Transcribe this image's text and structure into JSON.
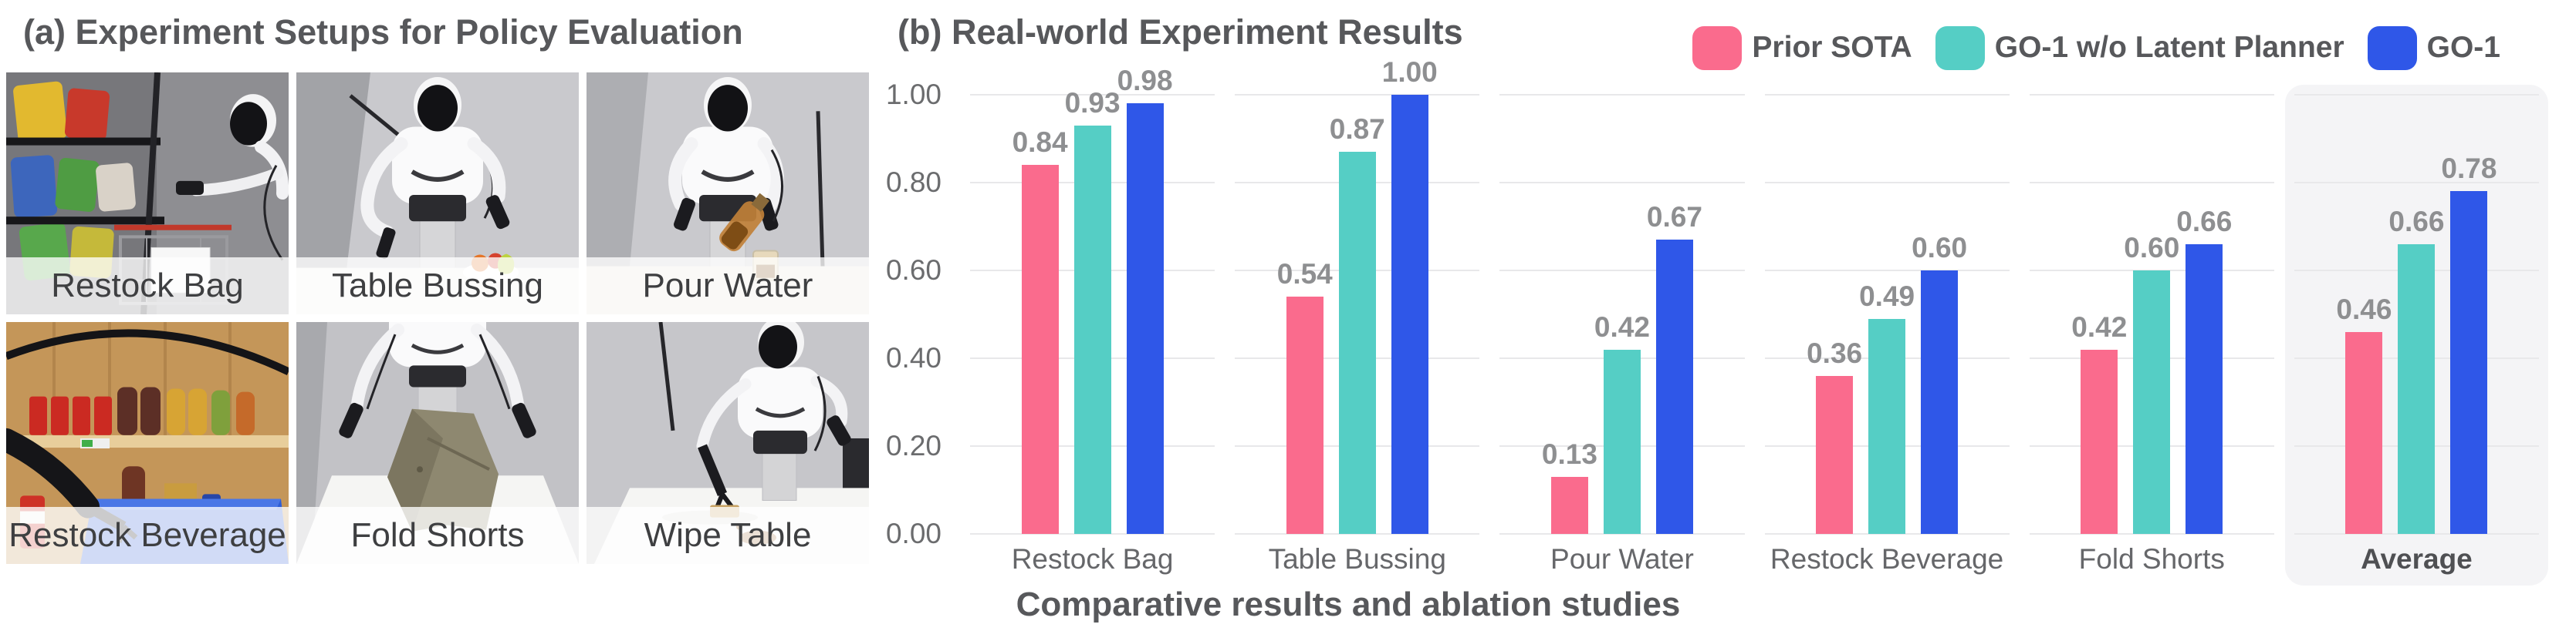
{
  "panel_a": {
    "title": "(a) Experiment Setups for Policy Evaluation",
    "setups": [
      {
        "label": "Restock Bag",
        "scene": "restock-bag"
      },
      {
        "label": "Table Bussing",
        "scene": "table-bussing"
      },
      {
        "label": "Pour Water",
        "scene": "pour-water"
      },
      {
        "label": "Restock Beverage",
        "scene": "restock-beverage"
      },
      {
        "label": "Fold Shorts",
        "scene": "fold-shorts"
      },
      {
        "label": "Wipe Table",
        "scene": "wipe-table"
      }
    ]
  },
  "panel_b": {
    "caption": "Comparative results and ablation studies"
  },
  "chart_data": {
    "type": "bar",
    "title": "(b) Real-world Experiment Results",
    "categories": [
      "Restock Bag",
      "Table Bussing",
      "Pour Water",
      "Restock Beverage",
      "Fold Shorts",
      "Average"
    ],
    "series": [
      {
        "name": "Prior SOTA",
        "color": "#FA6B8D",
        "values": [
          0.84,
          0.54,
          0.13,
          0.36,
          0.42,
          0.46
        ]
      },
      {
        "name": "GO-1 w/o Latent Planner",
        "color": "#55CEC5",
        "values": [
          0.93,
          0.87,
          0.42,
          0.49,
          0.6,
          0.66
        ]
      },
      {
        "name": "GO-1",
        "color": "#2F57E8",
        "values": [
          0.98,
          1.0,
          0.67,
          0.6,
          0.66,
          0.78
        ]
      }
    ],
    "ylim": [
      0,
      1
    ],
    "yticks": [
      0.0,
      0.2,
      0.4,
      0.6,
      0.8,
      1.0
    ],
    "grid": "horizontal",
    "legend_position": "top-right",
    "highlight_category": "Average",
    "value_labels": true,
    "colors": {
      "grid_line": "#E8E8EA",
      "highlight_bg": "#F4F4F6",
      "value_label_text": "#8E8F91",
      "axis_text": "#6B6C6E",
      "title_text": "#57585B"
    }
  }
}
